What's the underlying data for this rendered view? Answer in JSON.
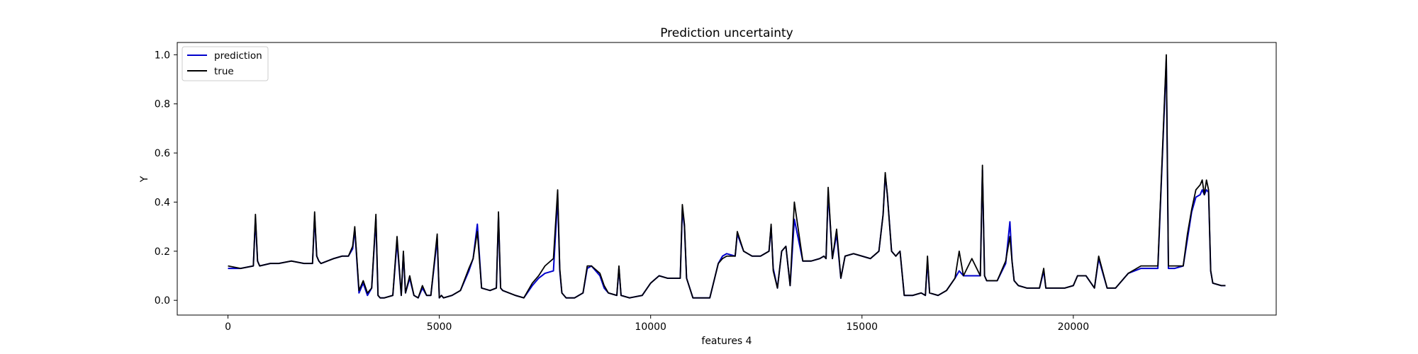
{
  "chart_data": {
    "type": "line",
    "title": "Prediction uncertainty",
    "xlabel": "features 4",
    "ylabel": "Y",
    "xlim": [
      -1200,
      24800
    ],
    "ylim": [
      -0.06,
      1.05
    ],
    "xticks": [
      0,
      5000,
      10000,
      15000,
      20000
    ],
    "xtick_labels": [
      "0",
      "5000",
      "10000",
      "15000",
      "20000"
    ],
    "yticks": [
      0.0,
      0.2,
      0.4,
      0.6,
      0.8,
      1.0
    ],
    "ytick_labels": [
      "0.0",
      "0.2",
      "0.4",
      "0.6",
      "0.8",
      "1.0"
    ],
    "grid": false,
    "legend_position": "upper left",
    "series": [
      {
        "name": "prediction",
        "color": "#0000cc",
        "x": [
          0,
          300,
          600,
          650,
          700,
          750,
          1000,
          1200,
          1500,
          1800,
          2000,
          2050,
          2100,
          2150,
          2200,
          2500,
          2700,
          2850,
          2950,
          3000,
          3100,
          3200,
          3300,
          3400,
          3500,
          3550,
          3600,
          3700,
          3900,
          4000,
          4100,
          4150,
          4200,
          4300,
          4400,
          4500,
          4600,
          4700,
          4800,
          4950,
          5000,
          5050,
          5100,
          5300,
          5500,
          5700,
          5800,
          5900,
          6000,
          6200,
          6350,
          6400,
          6450,
          6500,
          6800,
          7000,
          7200,
          7350,
          7500,
          7700,
          7800,
          7850,
          7900,
          8000,
          8200,
          8400,
          8500,
          8600,
          8800,
          8900,
          9000,
          9200,
          9250,
          9300,
          9500,
          9800,
          10000,
          10200,
          10400,
          10600,
          10700,
          10750,
          10800,
          10850,
          11000,
          11200,
          11400,
          11600,
          11700,
          11800,
          12000,
          12050,
          12200,
          12400,
          12600,
          12700,
          12800,
          12850,
          12900,
          13000,
          13100,
          13200,
          13300,
          13400,
          13600,
          13800,
          14000,
          14100,
          14150,
          14200,
          14300,
          14400,
          14500,
          14600,
          14800,
          15000,
          15200,
          15400,
          15500,
          15550,
          15600,
          15700,
          15800,
          15900,
          16000,
          16200,
          16400,
          16500,
          16550,
          16600,
          16800,
          17000,
          17200,
          17300,
          17400,
          17600,
          17800,
          17850,
          17900,
          17950,
          18000,
          18200,
          18400,
          18500,
          18550,
          18600,
          18700,
          18900,
          19200,
          19300,
          19350,
          19400,
          19600,
          19800,
          20000,
          20100,
          20300,
          20500,
          20600,
          20800,
          20850,
          20900,
          21000,
          21300,
          21600,
          21700,
          21800,
          22000,
          22200,
          22250,
          22300,
          22350,
          22400,
          22600,
          22700,
          22800,
          22900,
          23000,
          23050,
          23100,
          23150,
          23200,
          23250,
          23300,
          23500,
          23600
        ],
        "y": [
          0.13,
          0.13,
          0.14,
          0.33,
          0.16,
          0.14,
          0.15,
          0.15,
          0.16,
          0.15,
          0.15,
          0.34,
          0.18,
          0.16,
          0.15,
          0.17,
          0.18,
          0.18,
          0.21,
          0.29,
          0.03,
          0.07,
          0.02,
          0.05,
          0.33,
          0.02,
          0.01,
          0.01,
          0.02,
          0.24,
          0.02,
          0.19,
          0.03,
          0.09,
          0.02,
          0.01,
          0.05,
          0.02,
          0.02,
          0.25,
          0.01,
          0.02,
          0.01,
          0.02,
          0.04,
          0.12,
          0.17,
          0.31,
          0.05,
          0.04,
          0.05,
          0.34,
          0.05,
          0.04,
          0.02,
          0.01,
          0.06,
          0.09,
          0.11,
          0.12,
          0.42,
          0.12,
          0.03,
          0.01,
          0.01,
          0.03,
          0.13,
          0.14,
          0.1,
          0.05,
          0.03,
          0.02,
          0.13,
          0.02,
          0.01,
          0.02,
          0.07,
          0.1,
          0.09,
          0.09,
          0.09,
          0.37,
          0.3,
          0.09,
          0.01,
          0.01,
          0.01,
          0.15,
          0.18,
          0.19,
          0.18,
          0.27,
          0.2,
          0.18,
          0.18,
          0.19,
          0.2,
          0.3,
          0.13,
          0.05,
          0.2,
          0.22,
          0.06,
          0.33,
          0.16,
          0.16,
          0.17,
          0.18,
          0.17,
          0.44,
          0.17,
          0.27,
          0.09,
          0.18,
          0.19,
          0.18,
          0.17,
          0.2,
          0.35,
          0.51,
          0.43,
          0.2,
          0.18,
          0.2,
          0.02,
          0.02,
          0.03,
          0.02,
          0.16,
          0.03,
          0.02,
          0.04,
          0.09,
          0.12,
          0.1,
          0.1,
          0.1,
          0.53,
          0.1,
          0.08,
          0.08,
          0.08,
          0.15,
          0.32,
          0.16,
          0.08,
          0.06,
          0.05,
          0.05,
          0.12,
          0.05,
          0.05,
          0.05,
          0.05,
          0.06,
          0.1,
          0.1,
          0.05,
          0.17,
          0.05,
          0.05,
          0.05,
          0.05,
          0.11,
          0.13,
          0.13,
          0.13,
          0.13,
          0.98,
          0.13,
          0.13,
          0.13,
          0.13,
          0.14,
          0.25,
          0.36,
          0.42,
          0.43,
          0.45,
          0.43,
          0.45,
          0.44,
          0.12,
          0.07,
          0.06,
          0.06
        ]
      },
      {
        "name": "true",
        "color": "#000000",
        "x": [
          0,
          300,
          600,
          650,
          700,
          750,
          1000,
          1200,
          1500,
          1800,
          2000,
          2050,
          2100,
          2150,
          2200,
          2500,
          2700,
          2850,
          2950,
          3000,
          3100,
          3200,
          3300,
          3400,
          3500,
          3550,
          3600,
          3700,
          3900,
          4000,
          4100,
          4150,
          4200,
          4300,
          4400,
          4500,
          4600,
          4700,
          4800,
          4950,
          5000,
          5050,
          5100,
          5300,
          5500,
          5700,
          5800,
          5900,
          6000,
          6200,
          6350,
          6400,
          6450,
          6500,
          6800,
          7000,
          7200,
          7350,
          7500,
          7700,
          7800,
          7850,
          7900,
          8000,
          8200,
          8400,
          8500,
          8600,
          8800,
          8900,
          9000,
          9200,
          9250,
          9300,
          9500,
          9800,
          10000,
          10200,
          10400,
          10600,
          10700,
          10750,
          10800,
          10850,
          11000,
          11200,
          11400,
          11600,
          11700,
          11800,
          12000,
          12050,
          12200,
          12400,
          12600,
          12700,
          12800,
          12850,
          12900,
          13000,
          13100,
          13200,
          13300,
          13400,
          13600,
          13800,
          14000,
          14100,
          14150,
          14200,
          14300,
          14400,
          14500,
          14600,
          14800,
          15000,
          15200,
          15400,
          15500,
          15550,
          15600,
          15700,
          15800,
          15900,
          16000,
          16200,
          16400,
          16500,
          16550,
          16600,
          16800,
          17000,
          17200,
          17300,
          17400,
          17600,
          17800,
          17850,
          17900,
          17950,
          18000,
          18200,
          18400,
          18500,
          18550,
          18600,
          18700,
          18900,
          19200,
          19300,
          19350,
          19400,
          19600,
          19800,
          20000,
          20100,
          20300,
          20500,
          20600,
          20800,
          20850,
          20900,
          21000,
          21300,
          21600,
          21700,
          21800,
          22000,
          22200,
          22250,
          22300,
          22350,
          22400,
          22600,
          22700,
          22800,
          22900,
          23000,
          23050,
          23100,
          23150,
          23200,
          23250,
          23300,
          23500,
          23600
        ],
        "y": [
          0.14,
          0.13,
          0.14,
          0.35,
          0.16,
          0.14,
          0.15,
          0.15,
          0.16,
          0.15,
          0.15,
          0.36,
          0.18,
          0.16,
          0.15,
          0.17,
          0.18,
          0.18,
          0.22,
          0.3,
          0.04,
          0.08,
          0.03,
          0.05,
          0.35,
          0.02,
          0.01,
          0.01,
          0.02,
          0.26,
          0.02,
          0.2,
          0.03,
          0.1,
          0.02,
          0.01,
          0.06,
          0.02,
          0.02,
          0.27,
          0.01,
          0.02,
          0.01,
          0.02,
          0.04,
          0.13,
          0.17,
          0.28,
          0.05,
          0.04,
          0.05,
          0.36,
          0.05,
          0.04,
          0.02,
          0.01,
          0.07,
          0.1,
          0.14,
          0.17,
          0.45,
          0.13,
          0.03,
          0.01,
          0.01,
          0.03,
          0.14,
          0.14,
          0.11,
          0.06,
          0.03,
          0.02,
          0.14,
          0.02,
          0.01,
          0.02,
          0.07,
          0.1,
          0.09,
          0.09,
          0.09,
          0.39,
          0.31,
          0.09,
          0.01,
          0.01,
          0.01,
          0.15,
          0.17,
          0.18,
          0.18,
          0.28,
          0.2,
          0.18,
          0.18,
          0.19,
          0.2,
          0.31,
          0.12,
          0.05,
          0.2,
          0.22,
          0.06,
          0.4,
          0.16,
          0.16,
          0.17,
          0.18,
          0.17,
          0.46,
          0.17,
          0.29,
          0.09,
          0.18,
          0.19,
          0.18,
          0.17,
          0.2,
          0.35,
          0.52,
          0.43,
          0.2,
          0.18,
          0.2,
          0.02,
          0.02,
          0.03,
          0.02,
          0.18,
          0.03,
          0.02,
          0.04,
          0.09,
          0.2,
          0.1,
          0.17,
          0.1,
          0.55,
          0.1,
          0.08,
          0.08,
          0.08,
          0.16,
          0.26,
          0.16,
          0.08,
          0.06,
          0.05,
          0.05,
          0.13,
          0.05,
          0.05,
          0.05,
          0.05,
          0.06,
          0.1,
          0.1,
          0.05,
          0.18,
          0.05,
          0.05,
          0.05,
          0.05,
          0.11,
          0.14,
          0.14,
          0.14,
          0.14,
          1.0,
          0.14,
          0.14,
          0.14,
          0.14,
          0.14,
          0.27,
          0.37,
          0.45,
          0.47,
          0.49,
          0.43,
          0.49,
          0.45,
          0.12,
          0.07,
          0.06,
          0.06
        ]
      }
    ]
  }
}
